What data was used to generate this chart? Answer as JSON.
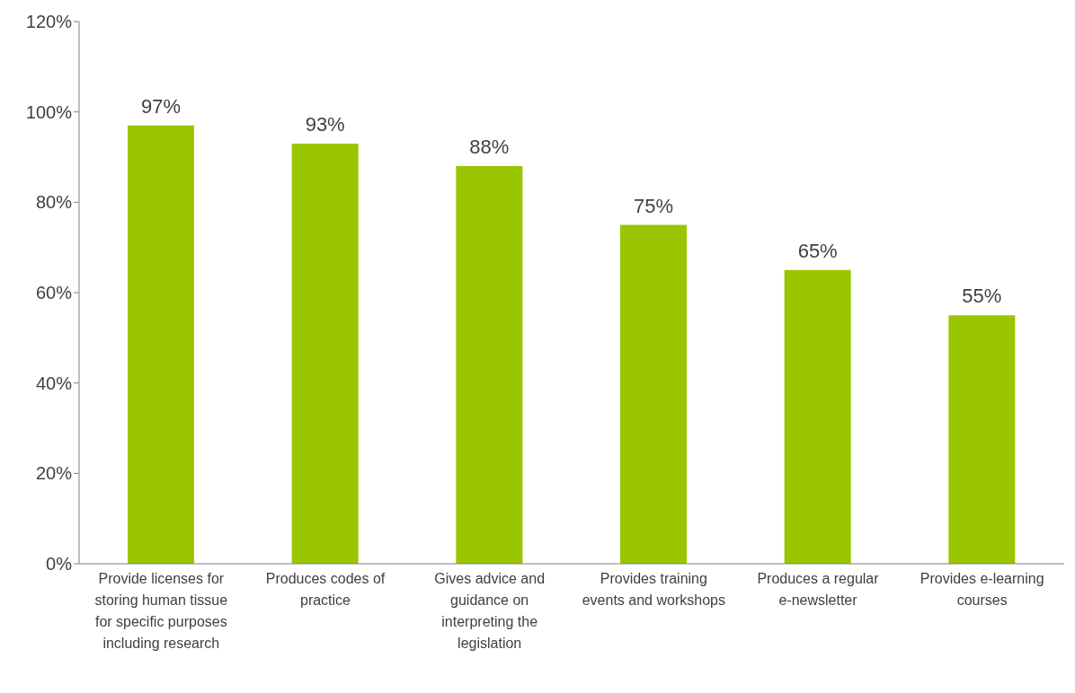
{
  "chart_data": {
    "type": "bar",
    "categories": [
      "Provide licenses for storing human tissue for specific purposes including research",
      "Produces codes of practice",
      "Gives advice and guidance on interpreting the legislation",
      "Provides training events and workshops",
      "Produces a regular e-newsletter",
      "Provides e-learning courses"
    ],
    "values": [
      97,
      93,
      88,
      75,
      65,
      55
    ],
    "value_labels": [
      "97%",
      "93%",
      "88%",
      "75%",
      "65%",
      "55%"
    ],
    "color": "#99c600",
    "ylim": [
      0,
      120
    ],
    "yticks": [
      {
        "value": 0,
        "label": "0%"
      },
      {
        "value": 20,
        "label": "20%"
      },
      {
        "value": 40,
        "label": "40%"
      },
      {
        "value": 60,
        "label": "60%"
      },
      {
        "value": 80,
        "label": "80%"
      },
      {
        "value": 100,
        "label": "100%"
      },
      {
        "value": 120,
        "label": "120%"
      }
    ],
    "grid": false,
    "legend": false
  }
}
